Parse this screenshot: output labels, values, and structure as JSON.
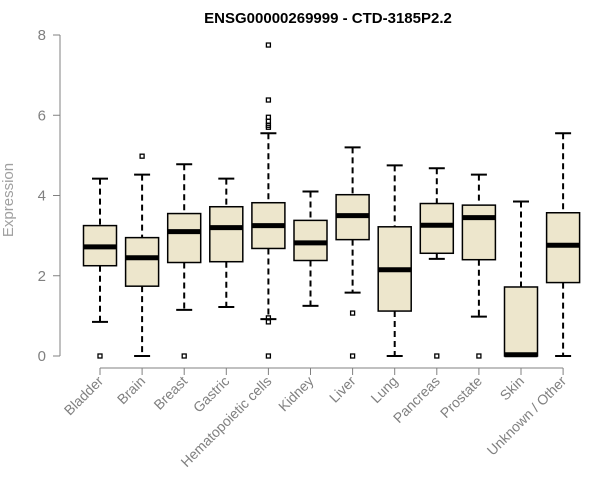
{
  "chart_data": {
    "type": "boxplot",
    "title": "ENSG00000269999 - CTD-3185P2.2",
    "xlabel": "",
    "ylabel": "Expression",
    "ylim": [
      0,
      8
    ],
    "yticks": [
      0,
      2,
      4,
      6,
      8
    ],
    "grid": false,
    "colors": {
      "box_fill": "#ede6cc",
      "stroke": "#000000",
      "axis": "#808080",
      "title": "#000000"
    },
    "categories": [
      "Bladder",
      "Brain",
      "Breast",
      "Gastric",
      "Hematopoietic cells",
      "Kidney",
      "Liver",
      "Lung",
      "Pancreas",
      "Prostate",
      "Skin",
      "Unknown / Other"
    ],
    "boxes": [
      {
        "category": "Bladder",
        "q1": 2.25,
        "median": 2.72,
        "q3": 3.25,
        "whisker_low": 0.85,
        "whisker_high": 4.42,
        "outliers": [
          0.0
        ]
      },
      {
        "category": "Brain",
        "q1": 1.74,
        "median": 2.45,
        "q3": 2.95,
        "whisker_low": 0.0,
        "whisker_high": 4.52,
        "outliers": [
          4.98
        ]
      },
      {
        "category": "Breast",
        "q1": 2.33,
        "median": 3.1,
        "q3": 3.55,
        "whisker_low": 1.15,
        "whisker_high": 4.78,
        "outliers": [
          0.0
        ]
      },
      {
        "category": "Gastric",
        "q1": 2.35,
        "median": 3.2,
        "q3": 3.72,
        "whisker_low": 1.22,
        "whisker_high": 4.42,
        "outliers": []
      },
      {
        "category": "Hematopoietic cells",
        "q1": 2.68,
        "median": 3.25,
        "q3": 3.82,
        "whisker_low": 0.92,
        "whisker_high": 5.55,
        "outliers": [
          0.0,
          0.85,
          0.95,
          5.7,
          5.75,
          5.85,
          5.95,
          6.38,
          7.75
        ]
      },
      {
        "category": "Kidney",
        "q1": 2.38,
        "median": 2.82,
        "q3": 3.38,
        "whisker_low": 1.25,
        "whisker_high": 4.1,
        "outliers": []
      },
      {
        "category": "Liver",
        "q1": 2.9,
        "median": 3.5,
        "q3": 4.02,
        "whisker_low": 1.58,
        "whisker_high": 5.2,
        "outliers": [
          0.0,
          1.07
        ]
      },
      {
        "category": "Lung",
        "q1": 1.12,
        "median": 2.15,
        "q3": 3.22,
        "whisker_low": 0.0,
        "whisker_high": 4.75,
        "outliers": []
      },
      {
        "category": "Pancreas",
        "q1": 2.56,
        "median": 3.26,
        "q3": 3.8,
        "whisker_low": 2.42,
        "whisker_high": 4.68,
        "outliers": [
          0.0
        ]
      },
      {
        "category": "Prostate",
        "q1": 2.4,
        "median": 3.45,
        "q3": 3.76,
        "whisker_low": 0.98,
        "whisker_high": 4.52,
        "outliers": [
          0.0
        ]
      },
      {
        "category": "Skin",
        "q1": 0.0,
        "median": 0.03,
        "q3": 1.72,
        "whisker_low": 0.0,
        "whisker_high": 3.85,
        "outliers": []
      },
      {
        "category": "Unknown / Other",
        "q1": 1.83,
        "median": 2.76,
        "q3": 3.57,
        "whisker_low": 0.0,
        "whisker_high": 5.55,
        "outliers": []
      }
    ]
  }
}
